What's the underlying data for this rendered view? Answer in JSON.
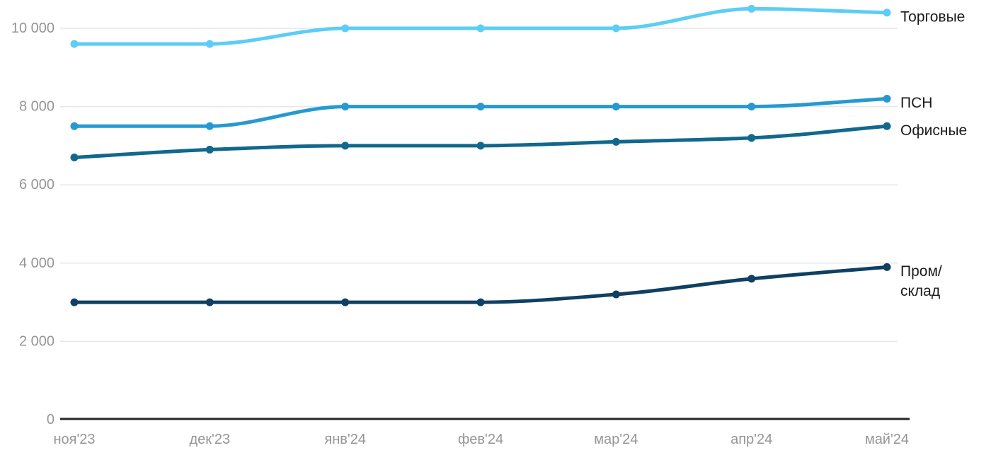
{
  "chart_data": {
    "type": "line",
    "title": "",
    "xlabel": "",
    "ylabel": "",
    "categories": [
      "ноя'23",
      "дек'23",
      "янв'24",
      "фев'24",
      "мар'24",
      "апр'24",
      "май'24"
    ],
    "series": [
      {
        "name": "Торговые",
        "label_lines": [
          "Торговые"
        ],
        "color": "#5CCDF5",
        "values": [
          9600,
          9600,
          10000,
          10000,
          10000,
          10500,
          10400
        ]
      },
      {
        "name": "ПСН",
        "label_lines": [
          "ПСН"
        ],
        "color": "#2699D1",
        "values": [
          7500,
          7500,
          8000,
          8000,
          8000,
          8000,
          8200
        ]
      },
      {
        "name": "Офисные",
        "label_lines": [
          "Офисные"
        ],
        "color": "#11688E",
        "values": [
          6700,
          6900,
          7000,
          7000,
          7100,
          7200,
          7500
        ]
      },
      {
        "name": "Пром/склад",
        "label_lines": [
          "Пром/",
          "склад"
        ],
        "color": "#0F3F63",
        "values": [
          3000,
          3000,
          3000,
          3000,
          3200,
          3600,
          3900
        ]
      }
    ],
    "yticks": [
      0,
      2000,
      4000,
      6000,
      8000,
      10000
    ],
    "ytick_labels": [
      "0",
      "2 000",
      "4 000",
      "6 000",
      "8 000",
      "10 000"
    ],
    "ylim": [
      0,
      10500
    ],
    "grid": "horizontal",
    "legend_position": "right-end-labels",
    "curve": "smooth-monotone"
  },
  "styles": {
    "background": "#ffffff",
    "axis_color": "#252525",
    "grid_color": "#e7e7e7",
    "tick_label_color": "#959595",
    "series_label_color": "#1b1b1b"
  }
}
